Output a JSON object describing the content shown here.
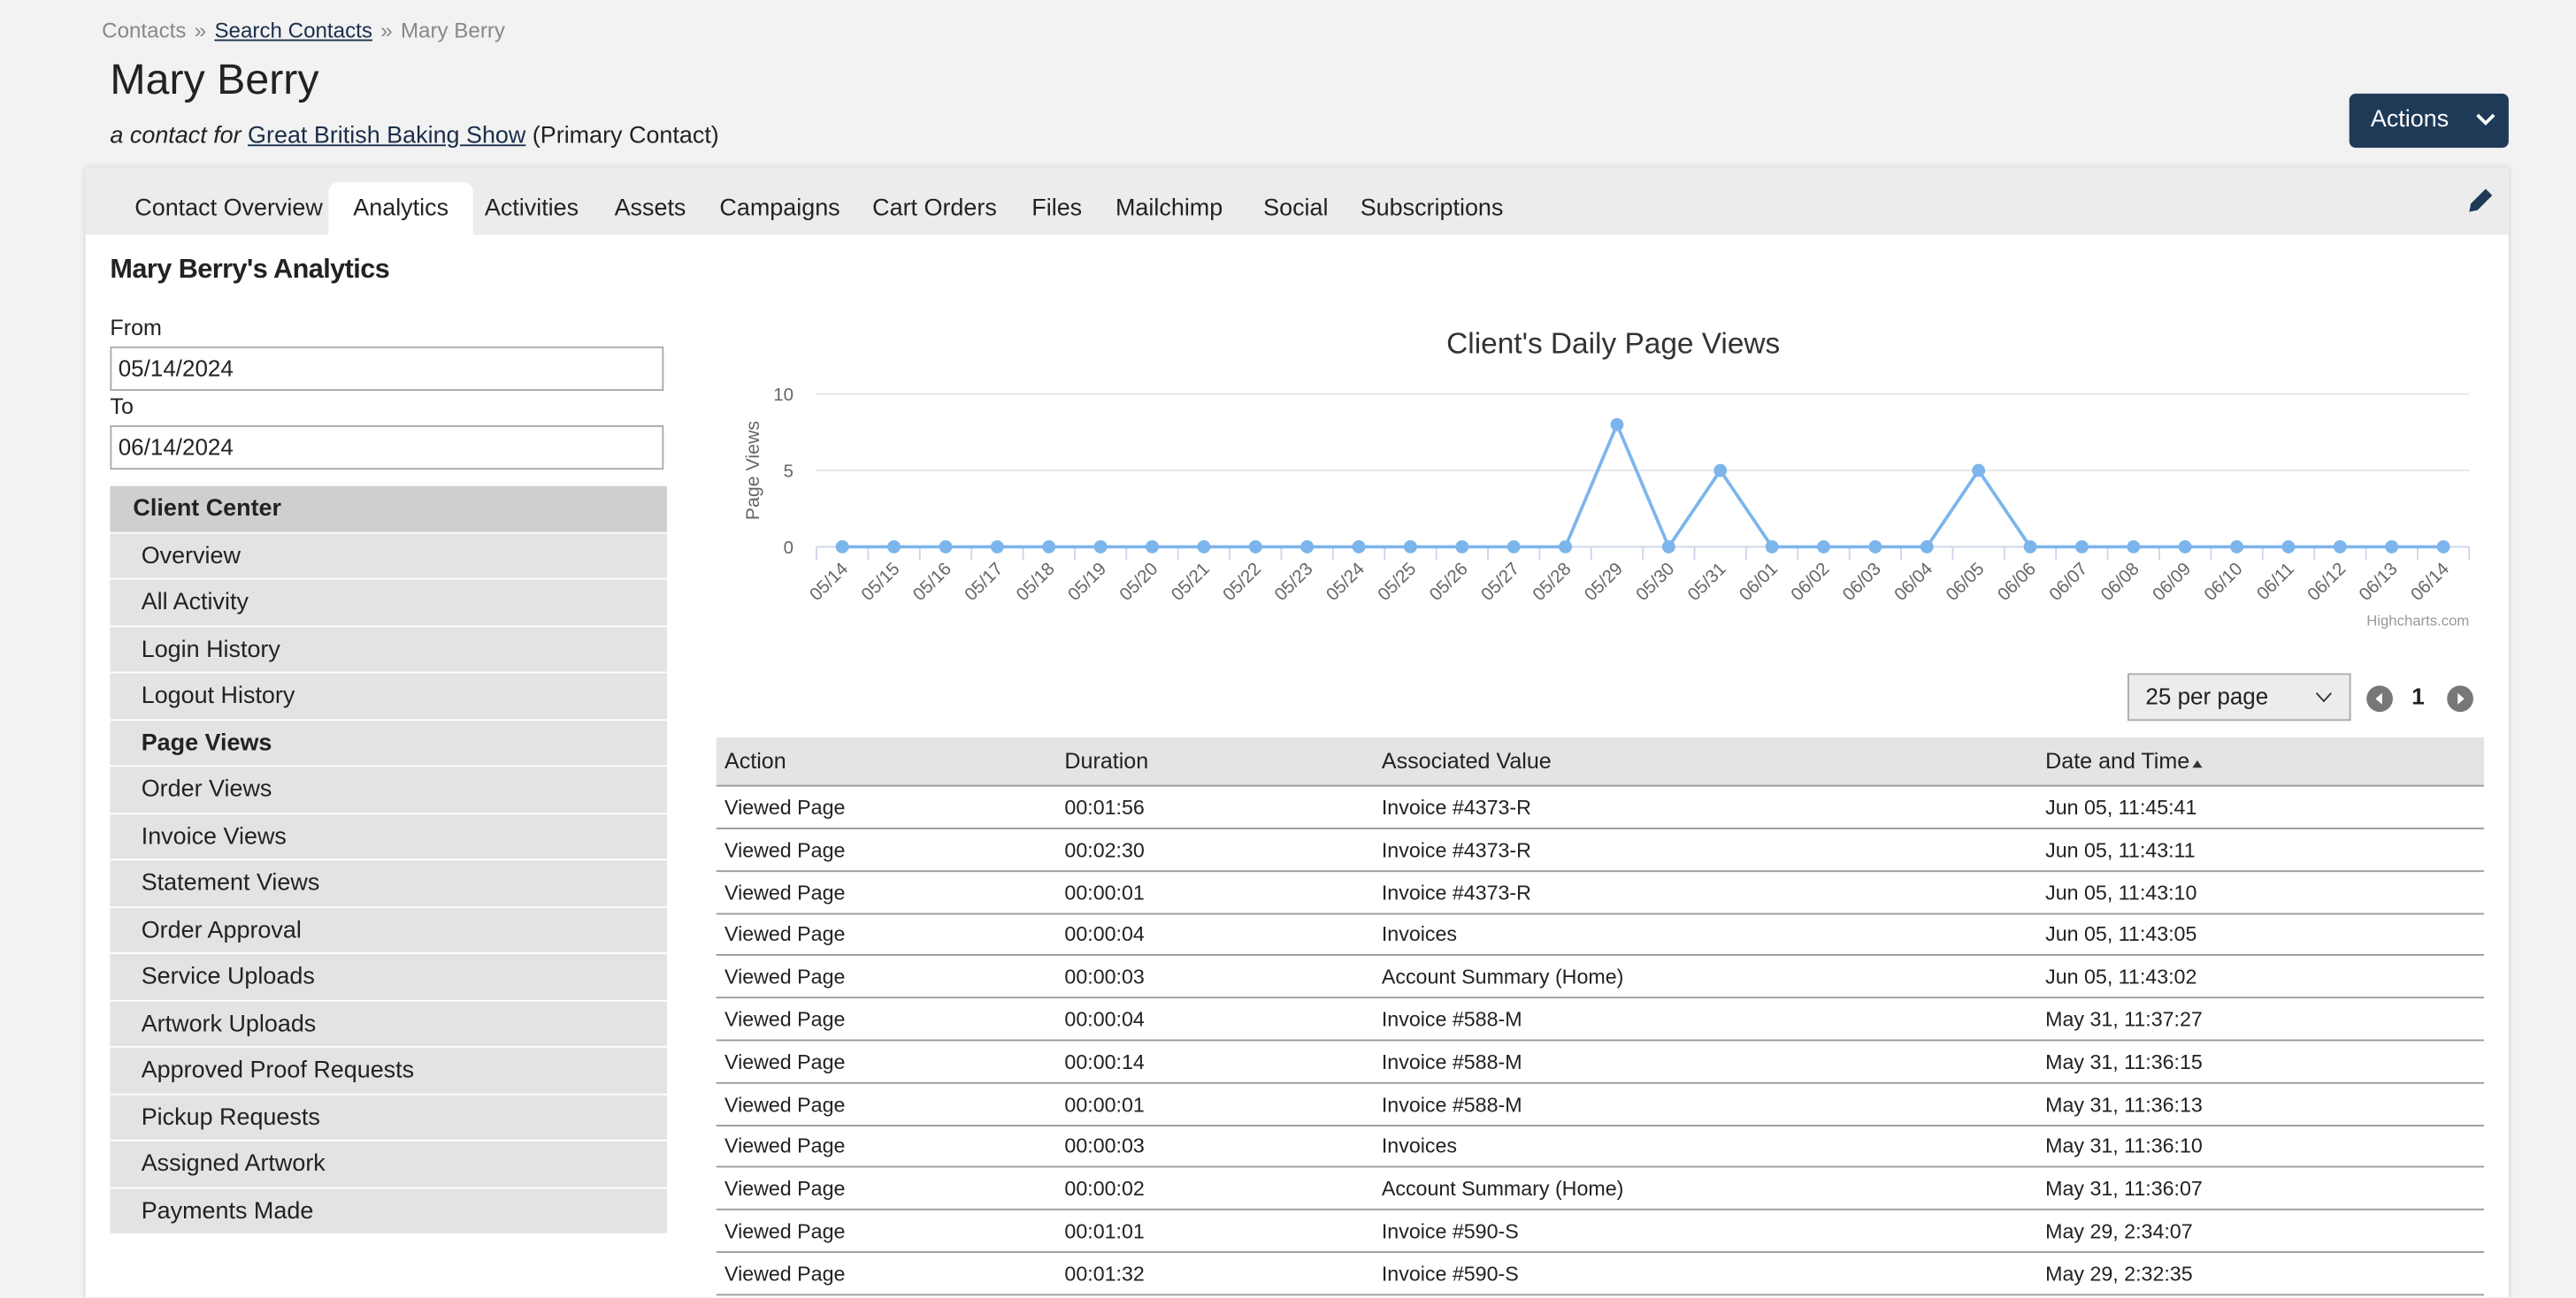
{
  "breadcrumb": {
    "items": [
      "Contacts",
      "Search Contacts",
      "Mary Berry"
    ],
    "separator": "»"
  },
  "header": {
    "title": "Mary Berry",
    "subtitle_prefix": "a contact for",
    "company": "Great British Baking Show",
    "subtitle_suffix": "(Primary Contact)",
    "actions": "Actions"
  },
  "tabs": {
    "items": [
      "Contact Overview",
      "Analytics",
      "Activities",
      "Assets",
      "Campaigns",
      "Cart Orders",
      "Files",
      "Mailchimp",
      "Social",
      "Subscriptions"
    ],
    "active": 1
  },
  "panel": {
    "title": "Mary Berry's Analytics",
    "from_label": "From",
    "from_value": "05/14/2024",
    "to_label": "To",
    "to_value": "06/14/2024"
  },
  "sidebar": {
    "header": "Client Center",
    "items": [
      "Overview",
      "All Activity",
      "Login History",
      "Logout History",
      "Page Views",
      "Order Views",
      "Invoice Views",
      "Statement Views",
      "Order Approval",
      "Service Uploads",
      "Artwork Uploads",
      "Approved Proof Requests",
      "Pickup Requests",
      "Assigned Artwork",
      "Payments Made"
    ],
    "active": 4
  },
  "chart_data": {
    "type": "line",
    "title": "Client's Daily Page Views",
    "y_label": "Page Views",
    "credit": "Highcharts.com",
    "categories": [
      "05/14",
      "05/15",
      "05/16",
      "05/17",
      "05/18",
      "05/19",
      "05/20",
      "05/21",
      "05/22",
      "05/23",
      "05/24",
      "05/25",
      "05/26",
      "05/27",
      "05/28",
      "05/29",
      "05/30",
      "05/31",
      "06/01",
      "06/02",
      "06/03",
      "06/04",
      "06/05",
      "06/06",
      "06/07",
      "06/08",
      "06/09",
      "06/10",
      "06/11",
      "06/12",
      "06/13",
      "06/14"
    ],
    "series": [
      {
        "name": "Page Views",
        "color": "#7cb5ec",
        "values": [
          0,
          0,
          0,
          0,
          0,
          0,
          0,
          0,
          0,
          0,
          0,
          0,
          0,
          0,
          0,
          8,
          0,
          5,
          0,
          0,
          0,
          0,
          5,
          0,
          0,
          0,
          0,
          0,
          0,
          0,
          0,
          0
        ]
      }
    ],
    "ylim": [
      0,
      10
    ],
    "yticks": [
      0,
      5,
      10
    ],
    "grid": true
  },
  "pagination": {
    "per_page": "25 per page",
    "page": 1
  },
  "table": {
    "columns": [
      "Action",
      "Duration",
      "Associated Value",
      "Date and Time"
    ],
    "sort_column": 3,
    "rows": [
      [
        "Viewed Page",
        "00:01:56",
        "Invoice #4373-R",
        "Jun 05, 11:45:41"
      ],
      [
        "Viewed Page",
        "00:02:30",
        "Invoice #4373-R",
        "Jun 05, 11:43:11"
      ],
      [
        "Viewed Page",
        "00:00:01",
        "Invoice #4373-R",
        "Jun 05, 11:43:10"
      ],
      [
        "Viewed Page",
        "00:00:04",
        "Invoices",
        "Jun 05, 11:43:05"
      ],
      [
        "Viewed Page",
        "00:00:03",
        "Account Summary (Home)",
        "Jun 05, 11:43:02"
      ],
      [
        "Viewed Page",
        "00:00:04",
        "Invoice #588-M",
        "May 31, 11:37:27"
      ],
      [
        "Viewed Page",
        "00:00:14",
        "Invoice #588-M",
        "May 31, 11:36:15"
      ],
      [
        "Viewed Page",
        "00:00:01",
        "Invoice #588-M",
        "May 31, 11:36:13"
      ],
      [
        "Viewed Page",
        "00:00:03",
        "Invoices",
        "May 31, 11:36:10"
      ],
      [
        "Viewed Page",
        "00:00:02",
        "Account Summary (Home)",
        "May 31, 11:36:07"
      ],
      [
        "Viewed Page",
        "00:01:01",
        "Invoice #590-S",
        "May 29, 2:34:07"
      ],
      [
        "Viewed Page",
        "00:01:32",
        "Invoice #590-S",
        "May 29, 2:32:35"
      ]
    ]
  }
}
